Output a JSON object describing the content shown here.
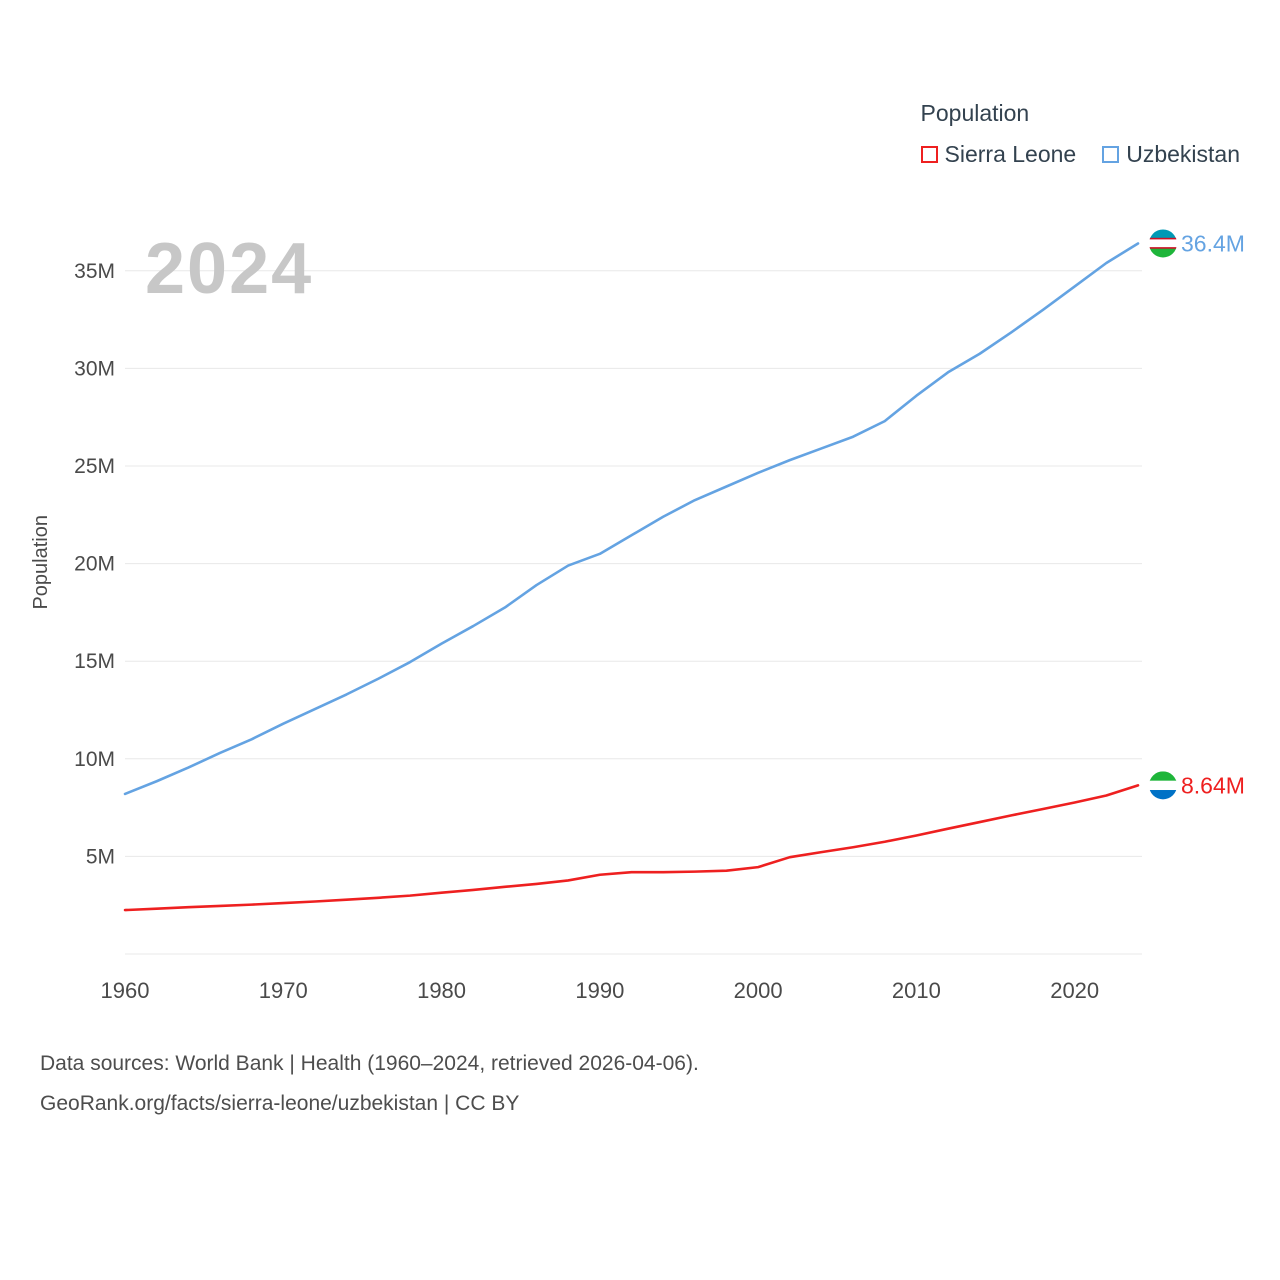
{
  "page": {
    "background": "#ffffff"
  },
  "legend": {
    "title": "Population",
    "items": [
      {
        "label": "Sierra Leone",
        "color": "#ee2020"
      },
      {
        "label": "Uzbekistan",
        "color": "#64a3e2"
      }
    ]
  },
  "watermark": "2024",
  "y_axis_title": "Population",
  "footer": {
    "line1": "Data sources: World Bank | Health (1960–2024, retrieved 2026-04-06).",
    "line2": "GeoRank.org/facts/sierra-leone/uzbekistan | CC BY"
  },
  "chart_data": {
    "type": "line",
    "title": "Population",
    "xlabel": "",
    "ylabel": "Population",
    "xlim": [
      1960,
      2024
    ],
    "ylim": [
      0,
      37.5
    ],
    "grid": "horizontal",
    "grid_color": "#e8e8e8",
    "tick_color": "#4a4a4a",
    "legend_position": "top-right",
    "x": [
      1960,
      1962,
      1964,
      1966,
      1968,
      1970,
      1972,
      1974,
      1976,
      1978,
      1980,
      1982,
      1984,
      1986,
      1988,
      1990,
      1992,
      1994,
      1996,
      1998,
      2000,
      2002,
      2004,
      2006,
      2008,
      2010,
      2012,
      2014,
      2016,
      2018,
      2020,
      2022,
      2024
    ],
    "xticks": [
      1960,
      1970,
      1980,
      1990,
      2000,
      2010,
      2020
    ],
    "yticks": [
      5,
      10,
      15,
      20,
      25,
      30,
      35
    ],
    "ytick_labels": [
      "5M",
      "10M",
      "15M",
      "20M",
      "25M",
      "30M",
      "35M"
    ],
    "series": [
      {
        "name": "Sierra Leone",
        "color": "#ee2020",
        "end_label": "8.64M",
        "flag_stripes": [
          "#1eb53a",
          "#ffffff",
          "#0072c6"
        ],
        "flag_separator": null,
        "values": [
          2.25,
          2.32,
          2.4,
          2.46,
          2.53,
          2.61,
          2.69,
          2.78,
          2.88,
          2.99,
          3.14,
          3.28,
          3.44,
          3.59,
          3.77,
          4.06,
          4.19,
          4.19,
          4.22,
          4.27,
          4.45,
          4.96,
          5.22,
          5.47,
          5.75,
          6.07,
          6.42,
          6.76,
          7.1,
          7.43,
          7.76,
          8.12,
          8.64
        ]
      },
      {
        "name": "Uzbekistan",
        "color": "#64a3e2",
        "end_label": "36.4M",
        "flag_stripes": [
          "#0099b5",
          "#ffffff",
          "#1eb53a"
        ],
        "flag_separator": "#ce1126",
        "values": [
          8.2,
          8.85,
          9.55,
          10.3,
          11.0,
          11.8,
          12.55,
          13.3,
          14.1,
          14.95,
          15.9,
          16.8,
          17.75,
          18.9,
          19.9,
          20.5,
          21.45,
          22.4,
          23.25,
          23.95,
          24.65,
          25.3,
          25.9,
          26.5,
          27.3,
          28.6,
          29.8,
          30.75,
          31.85,
          33.0,
          34.2,
          35.4,
          36.4
        ]
      }
    ]
  }
}
